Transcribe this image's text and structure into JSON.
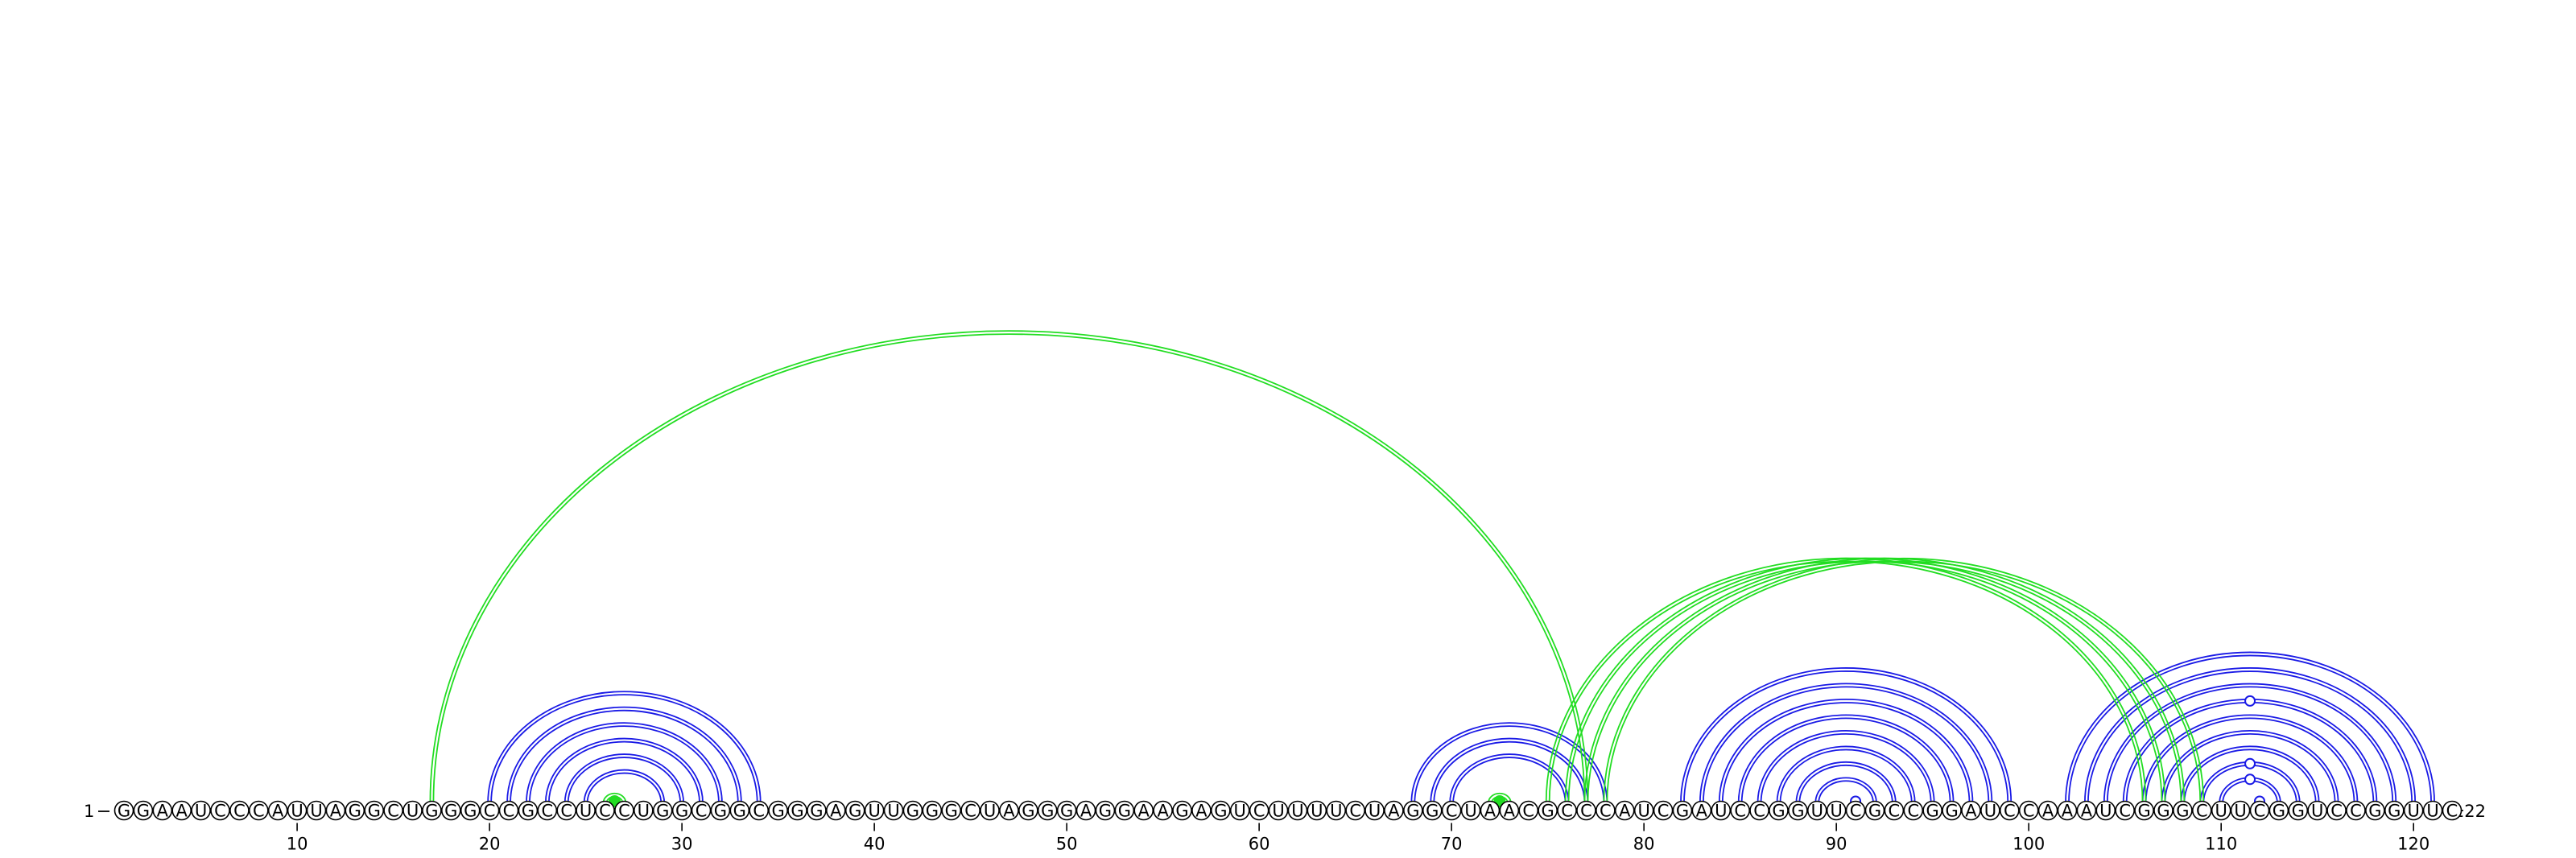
{
  "sequence": "GGAAUCCCAUUAGGCUGGGCCGCCUCCUGGCGGCGGGAGUUGGGCUAGGGAGGAAGAGUCUUUUCUAGGCUAACGCCCAUCGAUCCGGUUCGCCGGAUCCAAAUCGGGCUUCGGUCCGGUUC",
  "start_label": "1",
  "end_label": "122",
  "ticks": [
    10,
    20,
    30,
    40,
    50,
    60,
    70,
    80,
    90,
    100,
    110,
    120
  ],
  "colors": {
    "blue_arc": "#1a1ae6",
    "green_arc": "#22dd22",
    "backbone": "#000000"
  },
  "blue_pairs": [
    [
      20,
      34
    ],
    [
      21,
      33
    ],
    [
      22,
      32
    ],
    [
      23,
      31
    ],
    [
      24,
      30
    ],
    [
      25,
      29
    ],
    [
      68,
      78
    ],
    [
      69,
      77
    ],
    [
      70,
      76
    ],
    [
      82,
      99
    ],
    [
      83,
      98
    ],
    [
      84,
      97
    ],
    [
      85,
      96
    ],
    [
      86,
      95
    ],
    [
      87,
      94
    ],
    [
      88,
      93
    ],
    [
      89,
      92
    ],
    [
      102,
      121
    ],
    [
      103,
      120
    ],
    [
      104,
      119
    ],
    [
      105,
      118
    ],
    [
      106,
      117
    ],
    [
      107,
      116
    ],
    [
      108,
      115
    ],
    [
      109,
      114
    ],
    [
      110,
      113
    ]
  ],
  "green_pairs": [
    [
      17,
      77
    ],
    [
      26,
      27
    ],
    [
      72,
      73
    ],
    [
      75,
      106
    ],
    [
      76,
      107
    ],
    [
      77,
      108
    ],
    [
      78,
      109
    ]
  ],
  "open_loop_markers": [
    91,
    112
  ],
  "filled_loop_markers": [
    27,
    73
  ]
}
